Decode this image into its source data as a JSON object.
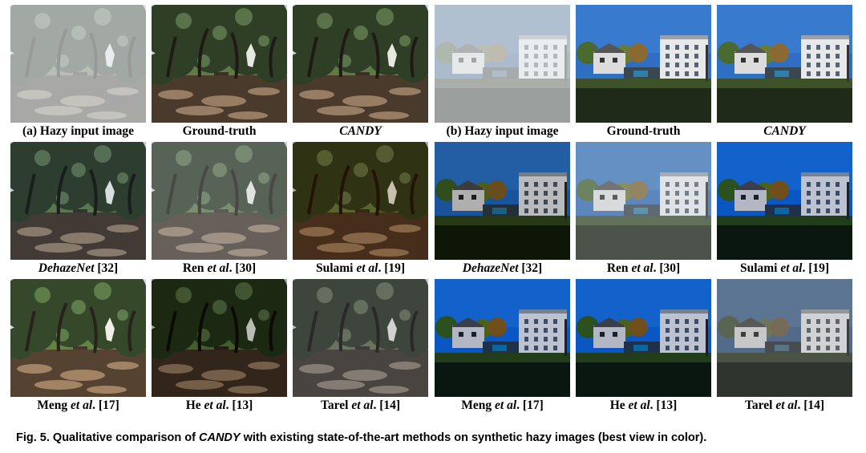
{
  "panel_a": {
    "cells": [
      {
        "prefix": "(a) Hazy input image",
        "italic": "",
        "suffix": "",
        "look": "hazy"
      },
      {
        "prefix": "Ground-truth",
        "italic": "",
        "suffix": "",
        "look": "clear"
      },
      {
        "prefix": "",
        "italic": "CANDY",
        "suffix": "",
        "look": "clear"
      },
      {
        "prefix": "",
        "italic": "DehazeNet",
        "suffix": " [32]",
        "look": "bluish"
      },
      {
        "prefix": "Ren ",
        "italic": "et al",
        "suffix": ". [30]",
        "look": "light"
      },
      {
        "prefix": "Sulami ",
        "italic": "et al",
        "suffix": ". [19]",
        "look": "warm"
      },
      {
        "prefix": "Meng ",
        "italic": "et al",
        "suffix": ". [17]",
        "look": "bright"
      },
      {
        "prefix": "He ",
        "italic": "et al",
        "suffix": ". [13]",
        "look": "dark"
      },
      {
        "prefix": "Tarel ",
        "italic": "et al",
        "suffix": ". [14]",
        "look": "gray"
      }
    ]
  },
  "panel_b": {
    "cells": [
      {
        "prefix": "(b) Hazy input image",
        "italic": "",
        "suffix": "",
        "look": "hazy"
      },
      {
        "prefix": "Ground-truth",
        "italic": "",
        "suffix": "",
        "look": "clear"
      },
      {
        "prefix": "",
        "italic": "CANDY",
        "suffix": "",
        "look": "clear"
      },
      {
        "prefix": "",
        "italic": "DehazeNet",
        "suffix": " [32]",
        "look": "dark"
      },
      {
        "prefix": "Ren ",
        "italic": "et al",
        "suffix": ". [30]",
        "look": "light"
      },
      {
        "prefix": "Sulami ",
        "italic": "et al",
        "suffix": ". [19]",
        "look": "deep"
      },
      {
        "prefix": "Meng ",
        "italic": "et al",
        "suffix": ". [17]",
        "look": "deep"
      },
      {
        "prefix": "He ",
        "italic": "et al",
        "suffix": ". [13]",
        "look": "deep"
      },
      {
        "prefix": "Tarel ",
        "italic": "et al",
        "suffix": ". [14]",
        "look": "gray"
      }
    ]
  },
  "caption": {
    "prefix": "Fig. 5. Qualitative comparison of ",
    "italic": "CANDY",
    "suffix": " with existing state-of-the-art methods on synthetic hazy images (best view in color)."
  }
}
